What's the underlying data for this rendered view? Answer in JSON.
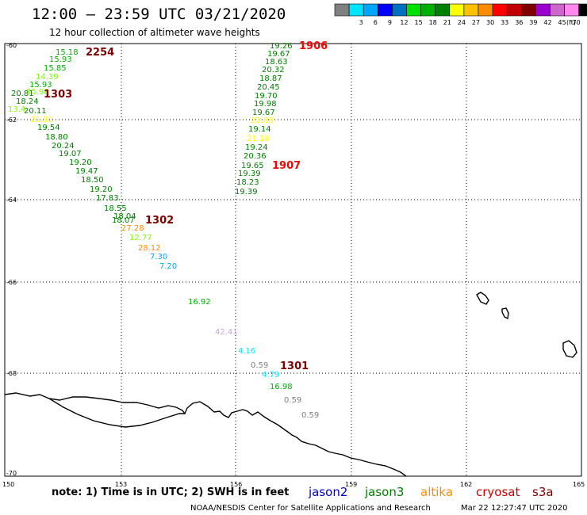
{
  "header": {
    "title": "12:00 — 23:59 UTC 03/21/2020",
    "subtitle": "12 hour collection of altimeter wave heights"
  },
  "legend": {
    "unit": "(ft)",
    "bins": [
      {
        "color": "#808080",
        "label": ""
      },
      {
        "color": "#00e5ff",
        "label": "3"
      },
      {
        "color": "#00a6ff",
        "label": "6"
      },
      {
        "color": "#0000ff",
        "label": "9"
      },
      {
        "color": "#0070c0",
        "label": "12"
      },
      {
        "color": "#00e000",
        "label": "15"
      },
      {
        "color": "#00b000",
        "label": "18"
      },
      {
        "color": "#008000",
        "label": "21"
      },
      {
        "color": "#ffff00",
        "label": "24"
      },
      {
        "color": "#ffc000",
        "label": "27"
      },
      {
        "color": "#ff8c00",
        "label": "30"
      },
      {
        "color": "#ff0000",
        "label": "33"
      },
      {
        "color": "#c00000",
        "label": "36"
      },
      {
        "color": "#800000",
        "label": "39"
      },
      {
        "color": "#9900cc",
        "label": "42"
      },
      {
        "color": "#cc66cc",
        "label": "45"
      },
      {
        "color": "#ff88ee",
        "label": "70"
      },
      {
        "color": "#000000",
        "label": ""
      }
    ]
  },
  "axes": {
    "x_ticks": [
      "150",
      "153",
      "156",
      "159",
      "162",
      "165"
    ],
    "y_ticks": [
      "-60",
      "-62",
      "-64",
      "-66",
      "-68",
      "-70"
    ]
  },
  "palette": {
    "jason2": "#0000cc",
    "jason3": "#008000",
    "altika": "#ff8c00",
    "cryosat": "#cc0000",
    "s3a": "#800000"
  },
  "observations": [
    {
      "text": "15.18",
      "color": "#00b000"
    },
    {
      "text": "15.93",
      "color": "#00b000"
    },
    {
      "text": "15.85",
      "color": "#00b000"
    },
    {
      "text": "14.39",
      "color": "#7cfc00"
    },
    {
      "text": "15.93",
      "color": "#00b000"
    },
    {
      "text": "20.81",
      "color": "#008000"
    },
    {
      "text": "15.98",
      "color": "#7cfc00"
    },
    {
      "text": "18.24",
      "color": "#008000"
    },
    {
      "text": "20.11",
      "color": "#008000"
    },
    {
      "text": "13.4",
      "color": "#7cfc00"
    },
    {
      "text": "21.80",
      "color": "#ffff00"
    },
    {
      "text": "19.54",
      "color": "#008000"
    },
    {
      "text": "18.80",
      "color": "#008000"
    },
    {
      "text": "20.24",
      "color": "#008000"
    },
    {
      "text": "19.07",
      "color": "#008000"
    },
    {
      "text": "19.20",
      "color": "#008000"
    },
    {
      "text": "19.47",
      "color": "#008000"
    },
    {
      "text": "18.50",
      "color": "#008000"
    },
    {
      "text": "19.20",
      "color": "#008000"
    },
    {
      "text": "17.83",
      "color": "#008000"
    },
    {
      "text": "18.55",
      "color": "#008000"
    },
    {
      "text": "18.04",
      "color": "#008000"
    },
    {
      "text": "18.07",
      "color": "#008000"
    },
    {
      "text": "27.28",
      "color": "#ff8c00"
    },
    {
      "text": "12.77",
      "color": "#7cfc00"
    },
    {
      "text": "28.12",
      "color": "#ff8c00"
    },
    {
      "text": "7.30",
      "color": "#00a6ff"
    },
    {
      "text": "7.20",
      "color": "#00a6ff"
    },
    {
      "text": "16.92",
      "color": "#00b000"
    },
    {
      "text": "42.41",
      "color": "#c6a6e0"
    },
    {
      "text": "4.16",
      "color": "#00e5ff"
    },
    {
      "text": "0.59",
      "color": "#808080"
    },
    {
      "text": "4.79",
      "color": "#00e5ff"
    },
    {
      "text": "16.98",
      "color": "#00b000"
    },
    {
      "text": "0.59",
      "color": "#808080"
    },
    {
      "text": "0.59",
      "color": "#808080"
    },
    {
      "text": "19.26",
      "color": "#008000"
    },
    {
      "text": "19.67",
      "color": "#008000"
    },
    {
      "text": "18.63",
      "color": "#008000"
    },
    {
      "text": "20.32",
      "color": "#008000"
    },
    {
      "text": "18.87",
      "color": "#008000"
    },
    {
      "text": "20.45",
      "color": "#008000"
    },
    {
      "text": "19.70",
      "color": "#008000"
    },
    {
      "text": "19.98",
      "color": "#008000"
    },
    {
      "text": "19.67",
      "color": "#008000"
    },
    {
      "text": "22.88",
      "color": "#ffff00"
    },
    {
      "text": "19.14",
      "color": "#008000"
    },
    {
      "text": "21.18",
      "color": "#ffff00"
    },
    {
      "text": "19.24",
      "color": "#008000"
    },
    {
      "text": "20.36",
      "color": "#008000"
    },
    {
      "text": "19.65",
      "color": "#008000"
    },
    {
      "text": "19.39",
      "color": "#008000"
    },
    {
      "text": "18.23",
      "color": "#008000"
    },
    {
      "text": "19.39",
      "color": "#008000"
    }
  ],
  "pass_times": [
    {
      "text": "2254",
      "color": "#800000"
    },
    {
      "text": "1303",
      "color": "#800000"
    },
    {
      "text": "1302",
      "color": "#800000"
    },
    {
      "text": "1301",
      "color": "#800000"
    },
    {
      "text": "1906",
      "color": "#ff0000"
    },
    {
      "text": "1907",
      "color": "#ff0000"
    }
  ],
  "footer": {
    "note": "note: 1) Time is in UTC; 2) SWH is in feet",
    "satellites": [
      "jason2",
      "jason3",
      "altika",
      "cryosat",
      "s3a"
    ],
    "credit": "NOAA/NESDIS Center for Satellite Applications and Research",
    "generated": "Mar 22 12:27:47 UTC 2020"
  }
}
